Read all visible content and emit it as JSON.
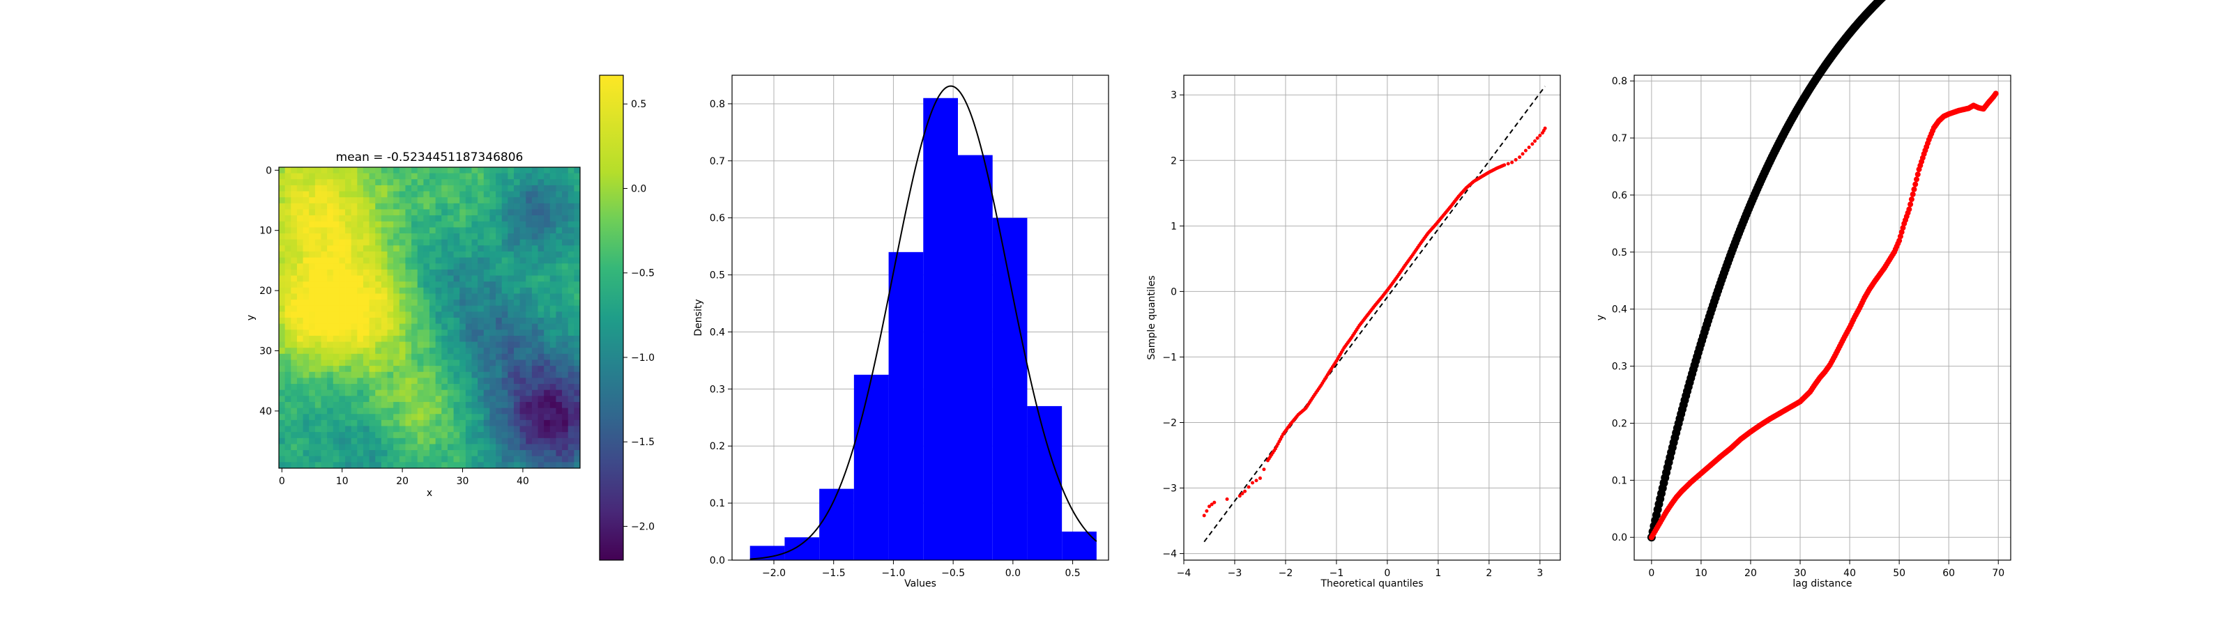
{
  "chart_data": [
    {
      "type": "heatmap",
      "title": "mean = -0.5234451187346806",
      "xlabel": "x",
      "ylabel": "y",
      "x_ticks": [
        "0",
        "10",
        "20",
        "30",
        "40"
      ],
      "y_ticks": [
        "0",
        "10",
        "20",
        "30",
        "40"
      ],
      "grid_size": 50,
      "colormap": "viridis",
      "colorbar": {
        "range": [
          -2.2,
          0.67
        ],
        "ticks": [
          {
            "value": 0.5,
            "label": "0.5"
          },
          {
            "value": 0.0,
            "label": "0.0"
          },
          {
            "value": -0.5,
            "label": "−0.5"
          },
          {
            "value": -1.0,
            "label": "−1.0"
          },
          {
            "value": -1.5,
            "label": "−1.5"
          },
          {
            "value": -2.0,
            "label": "−2.0"
          }
        ]
      },
      "field_features": [
        {
          "cx": 5,
          "cy": 5,
          "r": 8,
          "amp": 0.95
        },
        {
          "cx": 5,
          "cy": 24,
          "r": 6,
          "amp": 1.05
        },
        {
          "cx": 15,
          "cy": 24,
          "r": 6,
          "amp": 0.85
        },
        {
          "cx": 10,
          "cy": 14,
          "r": 7,
          "amp": 0.45
        },
        {
          "cx": 22,
          "cy": 40,
          "r": 6,
          "amp": 0.55
        },
        {
          "cx": 32,
          "cy": 5,
          "r": 7,
          "amp": 0.25
        },
        {
          "cx": 45,
          "cy": 41,
          "r": 7,
          "amp": -1.45
        },
        {
          "cx": 42,
          "cy": 7,
          "r": 5,
          "amp": -0.75
        },
        {
          "cx": 36,
          "cy": 28,
          "r": 6,
          "amp": -0.55
        },
        {
          "cx": 28,
          "cy": 17,
          "r": 6,
          "amp": -0.35
        },
        {
          "cx": 14,
          "cy": 46,
          "r": 5,
          "amp": -0.35
        }
      ]
    },
    {
      "type": "bar",
      "xlabel": "Values",
      "ylabel": "Density",
      "xlim": [
        -2.35,
        0.8
      ],
      "ylim": [
        0,
        0.85
      ],
      "x_ticks": [
        {
          "value": -2.0,
          "label": "−2.0"
        },
        {
          "value": -1.5,
          "label": "−1.5"
        },
        {
          "value": -1.0,
          "label": "−1.0"
        },
        {
          "value": -0.5,
          "label": "−0.5"
        },
        {
          "value": 0.0,
          "label": "0.0"
        },
        {
          "value": 0.5,
          "label": "0.5"
        }
      ],
      "y_ticks": [
        {
          "value": 0.0,
          "label": "0.0"
        },
        {
          "value": 0.1,
          "label": "0.1"
        },
        {
          "value": 0.2,
          "label": "0.2"
        },
        {
          "value": 0.3,
          "label": "0.3"
        },
        {
          "value": 0.4,
          "label": "0.4"
        },
        {
          "value": 0.5,
          "label": "0.5"
        },
        {
          "value": 0.6,
          "label": "0.6"
        },
        {
          "value": 0.7,
          "label": "0.7"
        },
        {
          "value": 0.8,
          "label": "0.8"
        }
      ],
      "bin_edges": [
        -2.2,
        -1.91,
        -1.62,
        -1.33,
        -1.04,
        -0.75,
        -0.46,
        -0.17,
        0.12,
        0.41,
        0.7
      ],
      "densities": [
        0.025,
        0.04,
        0.125,
        0.325,
        0.54,
        0.81,
        0.71,
        0.6,
        0.27,
        0.05
      ],
      "bar_color": "#0000ff",
      "fit_curve": {
        "type": "normal_pdf",
        "mean": -0.52,
        "sd": 0.48,
        "color": "#000000"
      },
      "grid": true
    },
    {
      "type": "scatter",
      "xlabel": "Theoretical quantiles",
      "ylabel": "Sample quantiles",
      "xlim": [
        -4.0,
        3.4
      ],
      "ylim": [
        -4.1,
        3.3
      ],
      "x_ticks": [
        {
          "value": -4,
          "label": "−4"
        },
        {
          "value": -3,
          "label": "−3"
        },
        {
          "value": -2,
          "label": "−2"
        },
        {
          "value": -1,
          "label": "−1"
        },
        {
          "value": 0,
          "label": "0"
        },
        {
          "value": 1,
          "label": "1"
        },
        {
          "value": 2,
          "label": "2"
        },
        {
          "value": 3,
          "label": "3"
        }
      ],
      "y_ticks": [
        {
          "value": -4,
          "label": "−4"
        },
        {
          "value": -3,
          "label": "−3"
        },
        {
          "value": -2,
          "label": "−2"
        },
        {
          "value": -1,
          "label": "−1"
        },
        {
          "value": 0,
          "label": "0"
        },
        {
          "value": 1,
          "label": "1"
        },
        {
          "value": 2,
          "label": "2"
        },
        {
          "value": 3,
          "label": "3"
        }
      ],
      "reference_line": {
        "from": [
          -3.6,
          -3.82
        ],
        "to": [
          3.1,
          3.13
        ],
        "color": "#000000",
        "dash": true
      },
      "points": [
        [
          -3.6,
          -3.42
        ],
        [
          -3.5,
          -3.28
        ],
        [
          -3.4,
          -3.22
        ],
        [
          -2.9,
          -3.12
        ],
        [
          -2.8,
          -3.05
        ],
        [
          -2.65,
          -2.92
        ],
        [
          -2.5,
          -2.85
        ],
        [
          -2.35,
          -2.58
        ],
        [
          -2.2,
          -2.4
        ],
        [
          -2.05,
          -2.18
        ],
        [
          -1.9,
          -2.02
        ],
        [
          -1.75,
          -1.88
        ],
        [
          -1.6,
          -1.78
        ],
        [
          -1.45,
          -1.6
        ],
        [
          -1.3,
          -1.43
        ],
        [
          -1.15,
          -1.24
        ],
        [
          -1.0,
          -1.06
        ],
        [
          -0.85,
          -0.86
        ],
        [
          -0.7,
          -0.7
        ],
        [
          -0.55,
          -0.52
        ],
        [
          -0.4,
          -0.37
        ],
        [
          -0.25,
          -0.22
        ],
        [
          -0.1,
          -0.08
        ],
        [
          0.05,
          0.07
        ],
        [
          0.2,
          0.23
        ],
        [
          0.35,
          0.4
        ],
        [
          0.5,
          0.56
        ],
        [
          0.65,
          0.73
        ],
        [
          0.8,
          0.89
        ],
        [
          0.95,
          1.02
        ],
        [
          1.1,
          1.16
        ],
        [
          1.25,
          1.3
        ],
        [
          1.4,
          1.45
        ],
        [
          1.55,
          1.58
        ],
        [
          1.7,
          1.68
        ],
        [
          1.85,
          1.75
        ],
        [
          2.0,
          1.82
        ],
        [
          2.15,
          1.88
        ],
        [
          2.3,
          1.93
        ],
        [
          2.45,
          1.97
        ],
        [
          2.6,
          2.05
        ],
        [
          2.72,
          2.15
        ],
        [
          2.85,
          2.25
        ],
        [
          2.95,
          2.34
        ],
        [
          3.05,
          2.42
        ],
        [
          3.1,
          2.49
        ]
      ],
      "point_color": "#ff0000",
      "grid": true
    },
    {
      "type": "scatter",
      "xlabel": "lag distance",
      "ylabel": "y",
      "xlim": [
        -3.5,
        72.5
      ],
      "ylim": [
        -0.04,
        0.81
      ],
      "x_ticks": [
        {
          "value": 0,
          "label": "0"
        },
        {
          "value": 10,
          "label": "10"
        },
        {
          "value": 20,
          "label": "20"
        },
        {
          "value": 30,
          "label": "30"
        },
        {
          "value": 40,
          "label": "40"
        },
        {
          "value": 50,
          "label": "50"
        },
        {
          "value": 60,
          "label": "60"
        },
        {
          "value": 70,
          "label": "70"
        }
      ],
      "y_ticks": [
        {
          "value": 0.0,
          "label": "0.0"
        },
        {
          "value": 0.1,
          "label": "0.1"
        },
        {
          "value": 0.2,
          "label": "0.2"
        },
        {
          "value": 0.3,
          "label": "0.3"
        },
        {
          "value": 0.4,
          "label": "0.4"
        },
        {
          "value": 0.5,
          "label": "0.5"
        },
        {
          "value": 0.6,
          "label": "0.6"
        },
        {
          "value": 0.7,
          "label": "0.7"
        },
        {
          "value": 0.8,
          "label": "0.8"
        }
      ],
      "series": [
        {
          "values": [
            [
              0,
              0
            ],
            [
              1,
              0.015
            ],
            [
              2,
              0.03
            ],
            [
              3,
              0.045
            ],
            [
              4,
              0.058
            ],
            [
              5,
              0.07
            ],
            [
              6,
              0.08
            ],
            [
              8,
              0.097
            ],
            [
              10,
              0.112
            ],
            [
              12,
              0.127
            ],
            [
              14,
              0.142
            ],
            [
              16,
              0.156
            ],
            [
              18,
              0.172
            ],
            [
              20,
              0.185
            ],
            [
              22,
              0.197
            ],
            [
              24,
              0.208
            ],
            [
              26,
              0.218
            ],
            [
              28,
              0.228
            ],
            [
              30,
              0.238
            ],
            [
              32,
              0.255
            ],
            [
              33,
              0.268
            ],
            [
              34,
              0.28
            ],
            [
              35,
              0.29
            ],
            [
              36,
              0.302
            ],
            [
              37,
              0.318
            ],
            [
              38,
              0.335
            ],
            [
              39,
              0.352
            ],
            [
              40,
              0.368
            ],
            [
              41,
              0.386
            ],
            [
              42,
              0.402
            ],
            [
              43,
              0.42
            ],
            [
              44,
              0.435
            ],
            [
              45,
              0.448
            ],
            [
              46,
              0.46
            ],
            [
              47,
              0.472
            ],
            [
              48,
              0.486
            ],
            [
              49,
              0.5
            ],
            [
              50,
              0.52
            ],
            [
              51,
              0.55
            ],
            [
              52,
              0.575
            ],
            [
              53,
              0.61
            ],
            [
              54,
              0.645
            ],
            [
              55,
              0.672
            ],
            [
              56,
              0.697
            ],
            [
              57,
              0.718
            ],
            [
              58,
              0.73
            ],
            [
              59,
              0.738
            ],
            [
              60,
              0.742
            ],
            [
              61,
              0.745
            ],
            [
              62,
              0.748
            ],
            [
              63,
              0.75
            ],
            [
              64,
              0.752
            ],
            [
              65,
              0.757
            ],
            [
              66,
              0.753
            ],
            [
              67,
              0.751
            ],
            [
              68,
              0.762
            ],
            [
              69,
              0.772
            ],
            [
              69.5,
              0.778
            ]
          ],
          "color": "#ff0000",
          "marker_radius": 4
        },
        {
          "model": {
            "sill": 1.2,
            "range": 90,
            "x_max": 69.5
          },
          "color": "#000000",
          "marker_radius": 6
        }
      ],
      "grid": true
    }
  ]
}
